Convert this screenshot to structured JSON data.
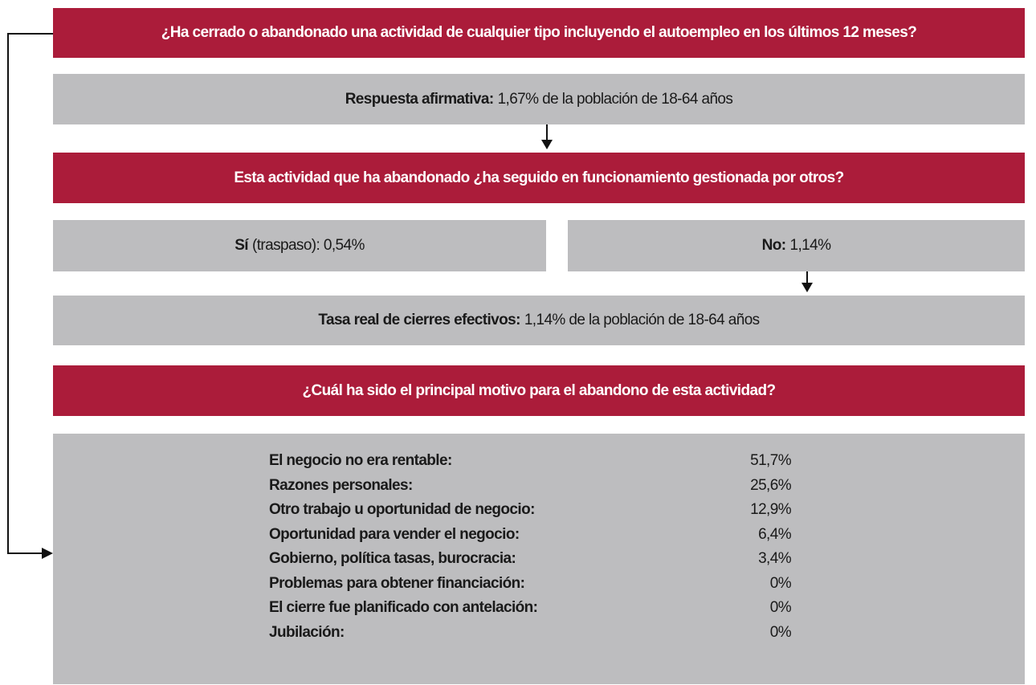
{
  "question1": "¿Ha cerrado o abandonado una actividad de cualquier tipo incluyendo el autoempleo en los últimos 12 meses?",
  "answer1": {
    "label": "Respuesta afirmativa:",
    "text": "1,67% de la población de 18-64 años"
  },
  "question2": "Esta actividad que ha abandonado ¿ha seguido en funcionamiento gestionada por otros?",
  "yes": {
    "label": "Sí",
    "text": "(traspaso): 0,54%"
  },
  "no": {
    "label": "No:",
    "text": "1,14%"
  },
  "rate": {
    "label": "Tasa real de cierres efectivos:",
    "text": "1,14% de la población de 18-64 años"
  },
  "question3": "¿Cuál ha sido el principal motivo para el abandono de esta actividad?",
  "reasons": [
    {
      "label": "El negocio no era rentable:",
      "value": "51,7%"
    },
    {
      "label": "Razones personales:",
      "value": "25,6%"
    },
    {
      "label": "Otro trabajo u oportunidad de negocio:",
      "value": "12,9%"
    },
    {
      "label": "Oportunidad para vender el negocio:",
      "value": "6,4%"
    },
    {
      "label": "Gobierno, política tasas, burocracia:",
      "value": "3,4%"
    },
    {
      "label": "Problemas para obtener financiación:",
      "value": "0%"
    },
    {
      "label": "El cierre fue planificado con antelación:",
      "value": "0%"
    },
    {
      "label": "Jubilación:",
      "value": "0%"
    }
  ]
}
